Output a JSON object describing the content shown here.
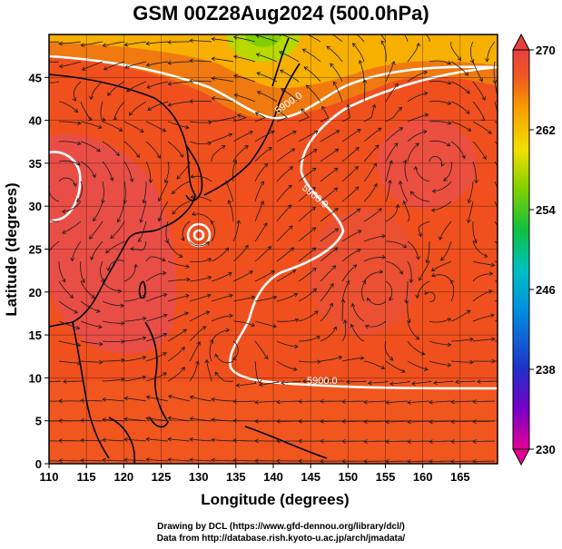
{
  "title": "GSM 00Z28Aug2024 (500.0hPa)",
  "xaxis": {
    "label": "Longitude (degrees)",
    "ticks": [
      "110",
      "115",
      "120",
      "125",
      "130",
      "135",
      "140",
      "145",
      "150",
      "155",
      "160",
      "165"
    ],
    "range": [
      110,
      170
    ]
  },
  "yaxis": {
    "label": "Latitude  (degrees)",
    "ticks": [
      "0",
      "5",
      "10",
      "15",
      "20",
      "25",
      "30",
      "35",
      "40",
      "45"
    ],
    "range": [
      0,
      50
    ]
  },
  "colorbar": {
    "labels": [
      "270",
      "262",
      "254",
      "246",
      "238",
      "230"
    ],
    "range": [
      230,
      270
    ],
    "colors": [
      "#e60096",
      "#7a00c8",
      "#2030c8",
      "#0090e0",
      "#00c0c0",
      "#10c040",
      "#80d000",
      "#f0e000",
      "#f8a000",
      "#f05a1e",
      "#e84040"
    ]
  },
  "contour_labels": [
    "5900.0",
    "5900.0",
    "5900.0"
  ],
  "map_colors": {
    "warm": "#f0501e",
    "hot": "#e84e4e",
    "mid": "#f07a10",
    "yellow": "#f8c800",
    "green": "#a8d800",
    "contour": "#ffffff",
    "streamline": "#1a1a1a"
  },
  "credits": [
    "Drawing by DCL (https://www.gfd-dennou.org/library/dcl/)",
    "Data from http://database.rish.kyoto-u.ac.jp/arch/jmadata/"
  ]
}
